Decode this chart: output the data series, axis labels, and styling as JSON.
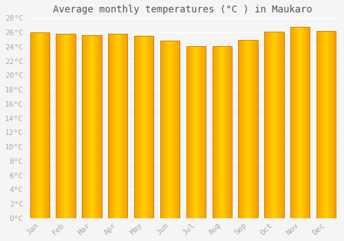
{
  "months": [
    "Jan",
    "Feb",
    "Mar",
    "Apr",
    "May",
    "Jun",
    "Jul",
    "Aug",
    "Sep",
    "Oct",
    "Nov",
    "Dec"
  ],
  "values": [
    26.0,
    25.8,
    25.6,
    25.8,
    25.5,
    24.8,
    24.1,
    24.1,
    24.9,
    26.1,
    26.8,
    26.2
  ],
  "bar_color_center": "#FFD000",
  "bar_color_edge": "#F5A000",
  "bar_color_border": "#D08000",
  "title": "Average monthly temperatures (°C ) in Maukaro",
  "ylim": [
    0,
    28
  ],
  "ytick_step": 2,
  "background_color": "#f5f5f5",
  "plot_bg_color": "#f5f5f5",
  "grid_color": "#ffffff",
  "title_fontsize": 10,
  "tick_fontsize": 8,
  "font_family": "monospace",
  "tick_color": "#aaaaaa",
  "title_color": "#555555"
}
